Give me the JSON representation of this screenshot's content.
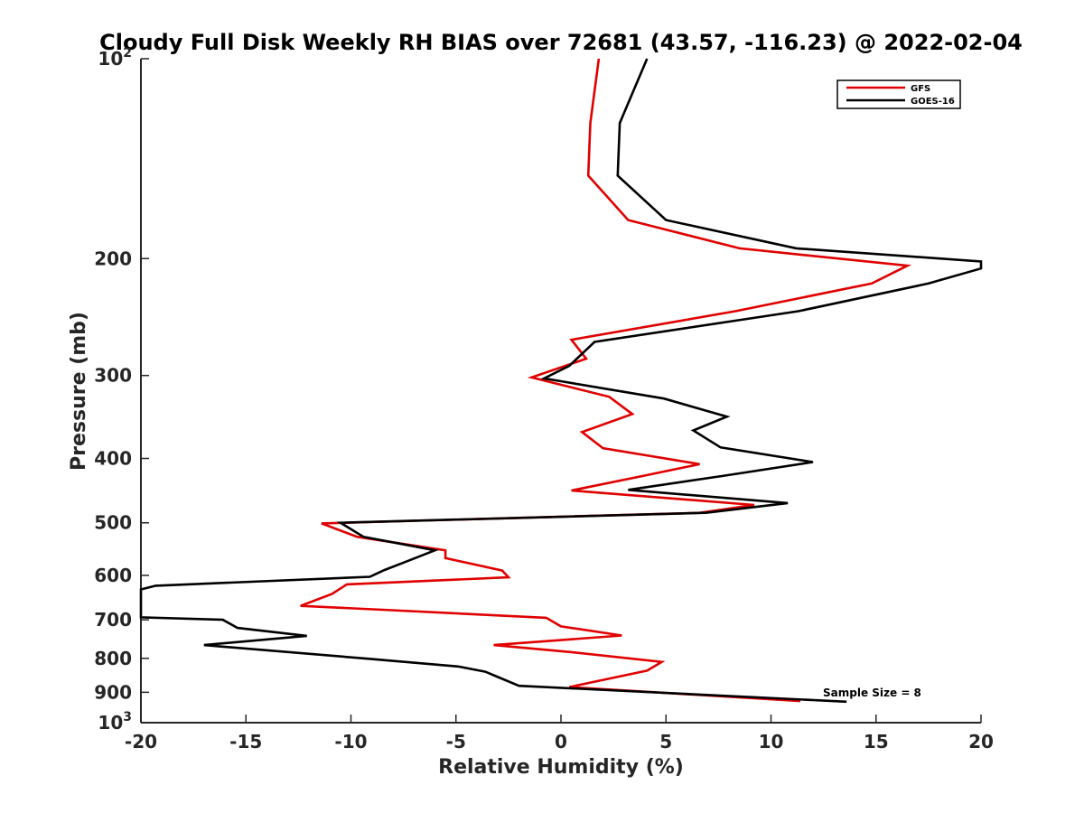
{
  "chart_data": {
    "type": "line",
    "title": "Cloudy Full Disk Weekly RH BIAS over 72681 (43.57, -116.23) @ 2022-02-04",
    "xlabel": "Relative Humidity (%)",
    "ylabel": "Pressure (mb)",
    "xlim": [
      -20,
      20
    ],
    "ylim": [
      1000,
      100
    ],
    "yscale": "log",
    "x_ticks": [
      "-20",
      "-15",
      "-10",
      "-5",
      "0",
      "5",
      "10",
      "15",
      "20"
    ],
    "y_ticks": [
      {
        "value": 100,
        "base": "10",
        "exp": "2"
      },
      {
        "value": 200,
        "label": "200"
      },
      {
        "value": 300,
        "label": "300"
      },
      {
        "value": 400,
        "label": "400"
      },
      {
        "value": 500,
        "label": "500"
      },
      {
        "value": 600,
        "label": "600"
      },
      {
        "value": 700,
        "label": "700"
      },
      {
        "value": 800,
        "label": "800"
      },
      {
        "value": 900,
        "label": "900"
      },
      {
        "value": 1000,
        "base": "10",
        "exp": "3"
      }
    ],
    "grid": false,
    "legend_position": "top-right",
    "annotation": "Sample Size = 8",
    "series": [
      {
        "name": "GFS",
        "color": "#e00000",
        "points": [
          [
            1.8,
            100
          ],
          [
            1.4,
            125
          ],
          [
            1.3,
            150
          ],
          [
            3.2,
            175
          ],
          [
            8.5,
            193
          ],
          [
            16.5,
            205
          ],
          [
            14.8,
            218
          ],
          [
            8.3,
            240
          ],
          [
            0.5,
            265
          ],
          [
            1.2,
            283
          ],
          [
            -1.4,
            302
          ],
          [
            2.3,
            323
          ],
          [
            3.4,
            343
          ],
          [
            1.0,
            365
          ],
          [
            2.0,
            386
          ],
          [
            6.6,
            408
          ],
          [
            3.9,
            425
          ],
          [
            0.5,
            447
          ],
          [
            9.2,
            470
          ],
          [
            6.6,
            483
          ],
          [
            -11.4,
            501
          ],
          [
            -9.7,
            525
          ],
          [
            -5.5,
            550
          ],
          [
            -5.5,
            565
          ],
          [
            -2.8,
            590
          ],
          [
            -2.5,
            604
          ],
          [
            -10.2,
            619
          ],
          [
            -10.9,
            640
          ],
          [
            -12.4,
            667
          ],
          [
            -8.5,
            676
          ],
          [
            -0.7,
            695
          ],
          [
            0.0,
            716
          ],
          [
            2.9,
            739
          ],
          [
            -3.2,
            764
          ],
          [
            0.5,
            783
          ],
          [
            4.8,
            810
          ],
          [
            4.1,
            835
          ],
          [
            0.4,
            884
          ],
          [
            11.4,
            928
          ]
        ]
      },
      {
        "name": "GOES-16",
        "color": "#000000",
        "points": [
          [
            4.1,
            100
          ],
          [
            2.8,
            125
          ],
          [
            2.7,
            150
          ],
          [
            5.0,
            175
          ],
          [
            11.2,
            193
          ],
          [
            20.0,
            202
          ],
          [
            20.0,
            207
          ],
          [
            17.5,
            218
          ],
          [
            11.3,
            240
          ],
          [
            1.6,
            267
          ],
          [
            0.4,
            290
          ],
          [
            -0.8,
            303
          ],
          [
            4.9,
            325
          ],
          [
            7.9,
            346
          ],
          [
            6.3,
            363
          ],
          [
            7.6,
            385
          ],
          [
            12.0,
            405
          ],
          [
            7.7,
            425
          ],
          [
            3.2,
            446
          ],
          [
            10.8,
            467
          ],
          [
            6.9,
            483
          ],
          [
            -10.5,
            500
          ],
          [
            -9.4,
            525
          ],
          [
            -6.0,
            550
          ],
          [
            -7.3,
            571
          ],
          [
            -8.4,
            589
          ],
          [
            -9.1,
            603
          ],
          [
            -19.3,
            622
          ],
          [
            -20.0,
            630
          ],
          [
            -20.0,
            694
          ],
          [
            -16.1,
            700
          ],
          [
            -15.4,
            720
          ],
          [
            -12.1,
            740
          ],
          [
            -17.0,
            764
          ],
          [
            -9.2,
            801
          ],
          [
            -4.9,
            823
          ],
          [
            -3.6,
            838
          ],
          [
            -3.1,
            851
          ],
          [
            -2.0,
            880
          ],
          [
            13.6,
            930
          ]
        ]
      }
    ]
  }
}
